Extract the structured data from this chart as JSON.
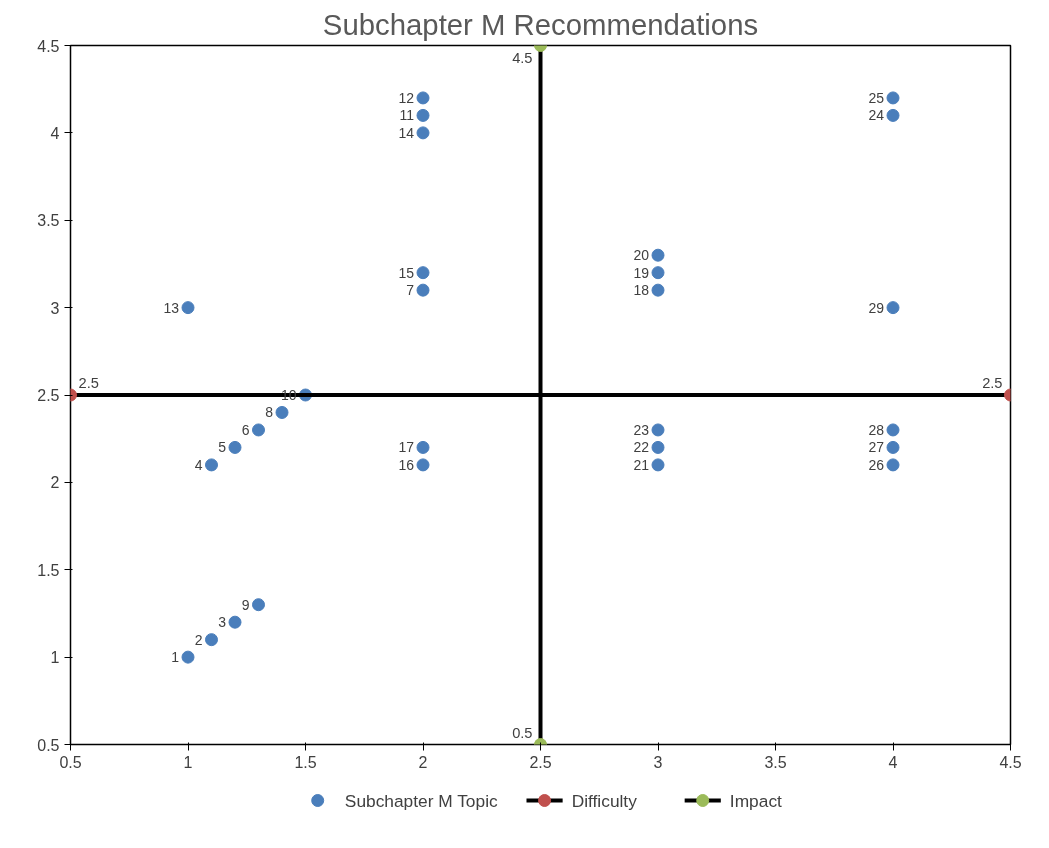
{
  "chart_data": {
    "type": "scatter",
    "title": "Subchapter M Recommendations",
    "xlim": [
      0.5,
      4.5
    ],
    "xticks": [
      0.5,
      1,
      1.5,
      2,
      2.5,
      3,
      3.5,
      4,
      4.5
    ],
    "ylim": [
      0.5,
      4.5
    ],
    "yticks": [
      0.5,
      1,
      1.5,
      2,
      2.5,
      3,
      3.5,
      4,
      4.5
    ],
    "grid": false,
    "legend": "bottom",
    "marker": "circle",
    "series": [
      {
        "name": "Subchapter M Topic",
        "color": "#4a7ebb",
        "x": [
          1,
          1.1,
          1.2,
          1.3,
          1.1,
          1.2,
          1.3,
          1.4,
          1.5,
          1,
          2,
          2,
          2,
          2,
          2,
          2,
          2,
          3,
          3,
          3,
          3,
          3,
          3,
          4,
          4,
          4,
          4,
          4,
          4
        ],
        "values": [
          1,
          1.1,
          1.2,
          1.3,
          2.1,
          2.2,
          2.3,
          2.4,
          2.5,
          3,
          4.2,
          4.1,
          4,
          3.2,
          3.1,
          2.2,
          2.1,
          3.3,
          3.2,
          3.1,
          2.3,
          2.2,
          2.1,
          4.2,
          4.1,
          3,
          2.3,
          2.2,
          2.1
        ]
      },
      {
        "name": "Difficulty",
        "type": "line",
        "color": "#000000",
        "colors": [
          "#c0504d",
          "#c0504d"
        ],
        "x": [
          0.5,
          4.5
        ],
        "values": [
          2.5,
          2.5
        ],
        "value_labels": [
          "2.5",
          "2.5"
        ]
      },
      {
        "name": "Impact",
        "type": "line",
        "color": "#000000",
        "colors": [
          "#9bbb59",
          "#9bbb59"
        ],
        "x": [
          2.5,
          2.5
        ],
        "values": [
          0.5,
          4.5
        ],
        "value_labels": [
          "0.5",
          "4.5"
        ]
      }
    ],
    "annotations": [
      {
        "text": "1",
        "x": 1,
        "y": 1
      },
      {
        "text": "2",
        "x": 1.1,
        "y": 1.1
      },
      {
        "text": "3",
        "x": 1.2,
        "y": 1.2
      },
      {
        "text": "9",
        "x": 1.3,
        "y": 1.3
      },
      {
        "text": "4",
        "x": 1.1,
        "y": 2.1
      },
      {
        "text": "5",
        "x": 1.2,
        "y": 2.2
      },
      {
        "text": "6",
        "x": 1.3,
        "y": 2.3
      },
      {
        "text": "8",
        "x": 1.4,
        "y": 2.4
      },
      {
        "text": "10",
        "x": 1.5,
        "y": 2.5
      },
      {
        "text": "13",
        "x": 1,
        "y": 3
      },
      {
        "text": "12",
        "x": 2,
        "y": 4.2
      },
      {
        "text": "11",
        "x": 2,
        "y": 4.1
      },
      {
        "text": "14",
        "x": 2,
        "y": 4
      },
      {
        "text": "15",
        "x": 2,
        "y": 3.2
      },
      {
        "text": "7",
        "x": 2,
        "y": 3.1
      },
      {
        "text": "17",
        "x": 2,
        "y": 2.2
      },
      {
        "text": "16",
        "x": 2,
        "y": 2.1
      },
      {
        "text": "20",
        "x": 3,
        "y": 3.3
      },
      {
        "text": "19",
        "x": 3,
        "y": 3.2
      },
      {
        "text": "18",
        "x": 3,
        "y": 3.1
      },
      {
        "text": "23",
        "x": 3,
        "y": 2.3
      },
      {
        "text": "22",
        "x": 3,
        "y": 2.2
      },
      {
        "text": "21",
        "x": 3,
        "y": 2.1
      },
      {
        "text": "25",
        "x": 4,
        "y": 4.2
      },
      {
        "text": "24",
        "x": 4,
        "y": 4.1
      },
      {
        "text": "29",
        "x": 4,
        "y": 3
      },
      {
        "text": "28",
        "x": 4,
        "y": 2.3
      },
      {
        "text": "27",
        "x": 4,
        "y": 2.2
      },
      {
        "text": "26",
        "x": 4,
        "y": 2.1
      }
    ]
  }
}
